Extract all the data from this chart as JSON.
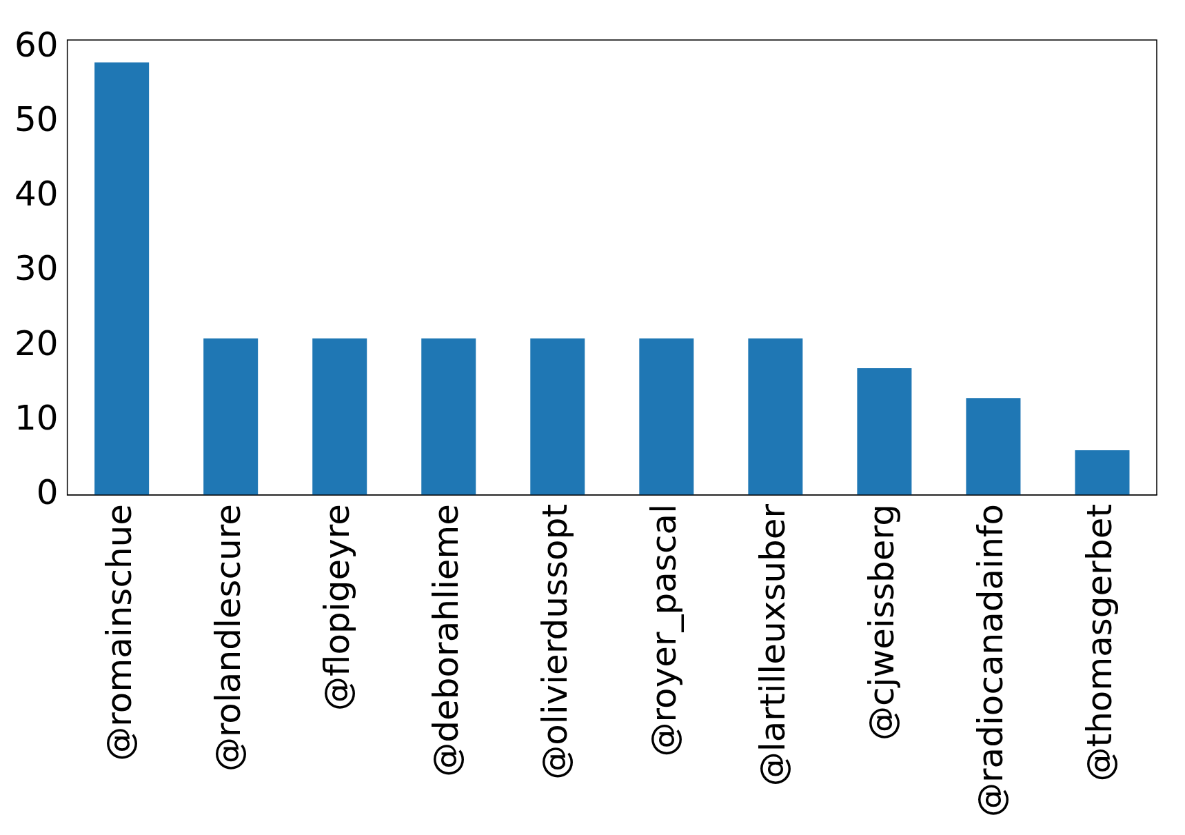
{
  "chart_data": {
    "type": "bar",
    "categories": [
      "@romainschue",
      "@rolandlescure",
      "@flopigeyre",
      "@deborahlieme",
      "@olivierdussopt",
      "@royer_pascal",
      "@lartilleuxsuber",
      "@cjweissberg",
      "@radiocanadainfo",
      "@thomasgerbet"
    ],
    "values": [
      58,
      21,
      21,
      21,
      21,
      21,
      21,
      17,
      13,
      6
    ],
    "color": "#1f77b4",
    "ylim": [
      0,
      61
    ],
    "yticks": [
      0,
      10,
      20,
      30,
      40,
      50,
      60
    ],
    "grid": false,
    "legend": false
  }
}
